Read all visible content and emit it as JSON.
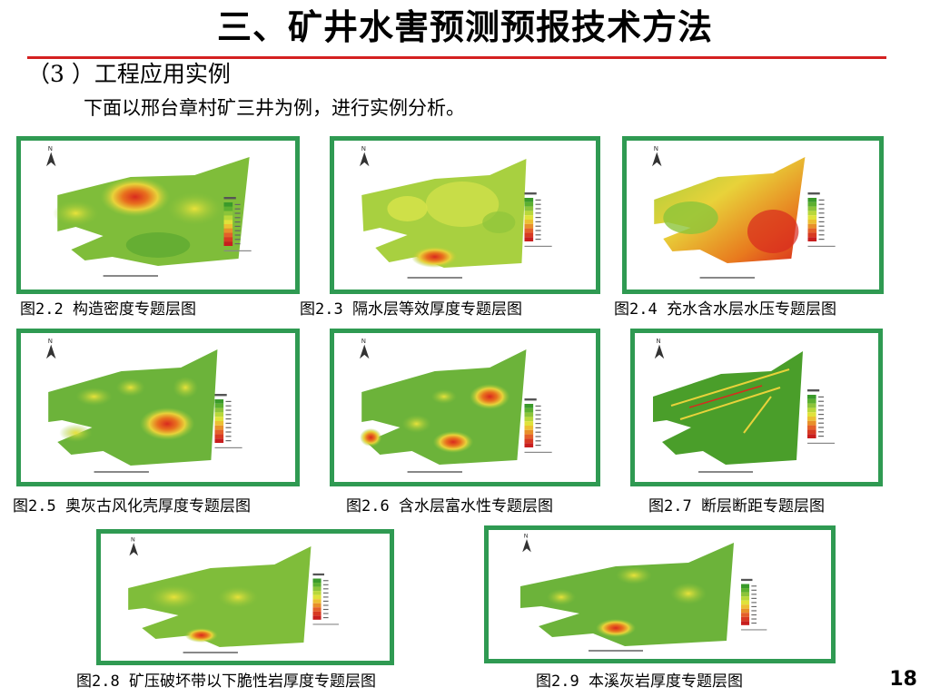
{
  "slide": {
    "title": "三、矿井水害预测预报技术方法",
    "subheading": "（3 ）工程应用实例",
    "intro": "下面以邢台章村矿三井为例，进行实例分析。",
    "page_number": "18"
  },
  "figures": [
    {
      "caption": "图2.2 构造密度专题层图"
    },
    {
      "caption": "图2.3 隔水层等效厚度专题层图"
    },
    {
      "caption": "图2.4 充水含水层水压专题层图"
    },
    {
      "caption": "图2.5 奥灰古风化壳厚度专题层图"
    },
    {
      "caption": "图2.6 含水层富水性专题层图"
    },
    {
      "caption": "图2.7  断层断距专题层图"
    },
    {
      "caption": "图2.8 矿压破坏带以下脆性岩厚度专题层图"
    },
    {
      "caption": "图2.9 本溪灰岩厚度专题层图"
    }
  ],
  "colors": {
    "frame": "#2f9a52",
    "title_rule": "#d42020",
    "map_green": "#6cb33a",
    "map_yellow": "#e8e23a",
    "map_red": "#d92a1e"
  },
  "icons": [
    "north-arrow-icon"
  ]
}
